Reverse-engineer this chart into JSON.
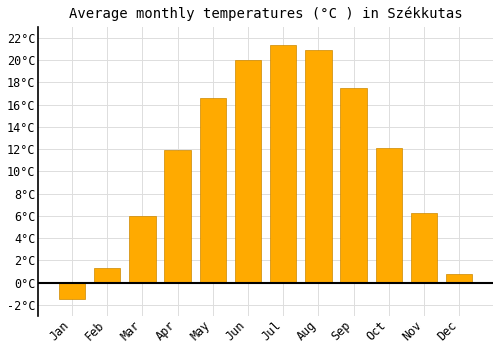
{
  "title": "Average monthly temperatures (°C ) in Székkutas",
  "months": [
    "Jan",
    "Feb",
    "Mar",
    "Apr",
    "May",
    "Jun",
    "Jul",
    "Aug",
    "Sep",
    "Oct",
    "Nov",
    "Dec"
  ],
  "values": [
    -1.5,
    1.3,
    6.0,
    11.9,
    16.6,
    20.0,
    21.4,
    20.9,
    17.5,
    12.1,
    6.3,
    0.8
  ],
  "bar_color": "#FFAA00",
  "bar_edge_color": "#CC8800",
  "ylim": [
    -3,
    23
  ],
  "yticks": [
    -2,
    0,
    2,
    4,
    6,
    8,
    10,
    12,
    14,
    16,
    18,
    20,
    22
  ],
  "grid_color": "#dddddd",
  "background_color": "#ffffff",
  "plot_bg_color": "#ffffff",
  "title_fontsize": 10,
  "tick_fontsize": 8.5,
  "bar_width": 0.75
}
